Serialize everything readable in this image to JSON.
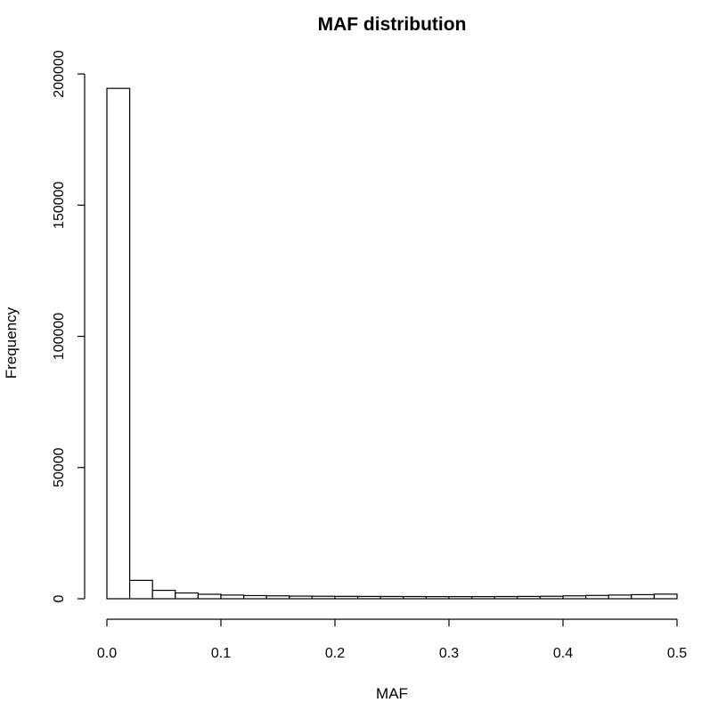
{
  "chart_data": {
    "type": "bar",
    "title": "MAF distribution",
    "xlabel": "MAF",
    "ylabel": "Frequency",
    "bin_width": 0.02,
    "bin_starts": [
      0.0,
      0.02,
      0.04,
      0.06,
      0.08,
      0.1,
      0.12,
      0.14,
      0.16,
      0.18,
      0.2,
      0.22,
      0.24,
      0.26,
      0.28,
      0.3,
      0.32,
      0.34,
      0.36,
      0.38,
      0.4,
      0.42,
      0.44,
      0.46,
      0.48
    ],
    "values": [
      194500,
      7000,
      3200,
      2200,
      1700,
      1400,
      1200,
      1100,
      1000,
      950,
      900,
      880,
      860,
      840,
      820,
      820,
      820,
      840,
      880,
      940,
      1100,
      1250,
      1400,
      1550,
      1750
    ],
    "xlim": [
      0,
      0.5
    ],
    "ylim": [
      0,
      200000
    ],
    "x_ticks": [
      0.0,
      0.1,
      0.2,
      0.3,
      0.4,
      0.5
    ],
    "x_tick_labels": [
      "0.0",
      "0.1",
      "0.2",
      "0.3",
      "0.4",
      "0.5"
    ],
    "y_ticks": [
      0,
      50000,
      100000,
      150000,
      200000
    ],
    "y_tick_labels": [
      "0",
      "50000",
      "100000",
      "150000",
      "200000"
    ],
    "grid": false,
    "bar_fill": "#ffffff",
    "bar_stroke": "#000000"
  }
}
